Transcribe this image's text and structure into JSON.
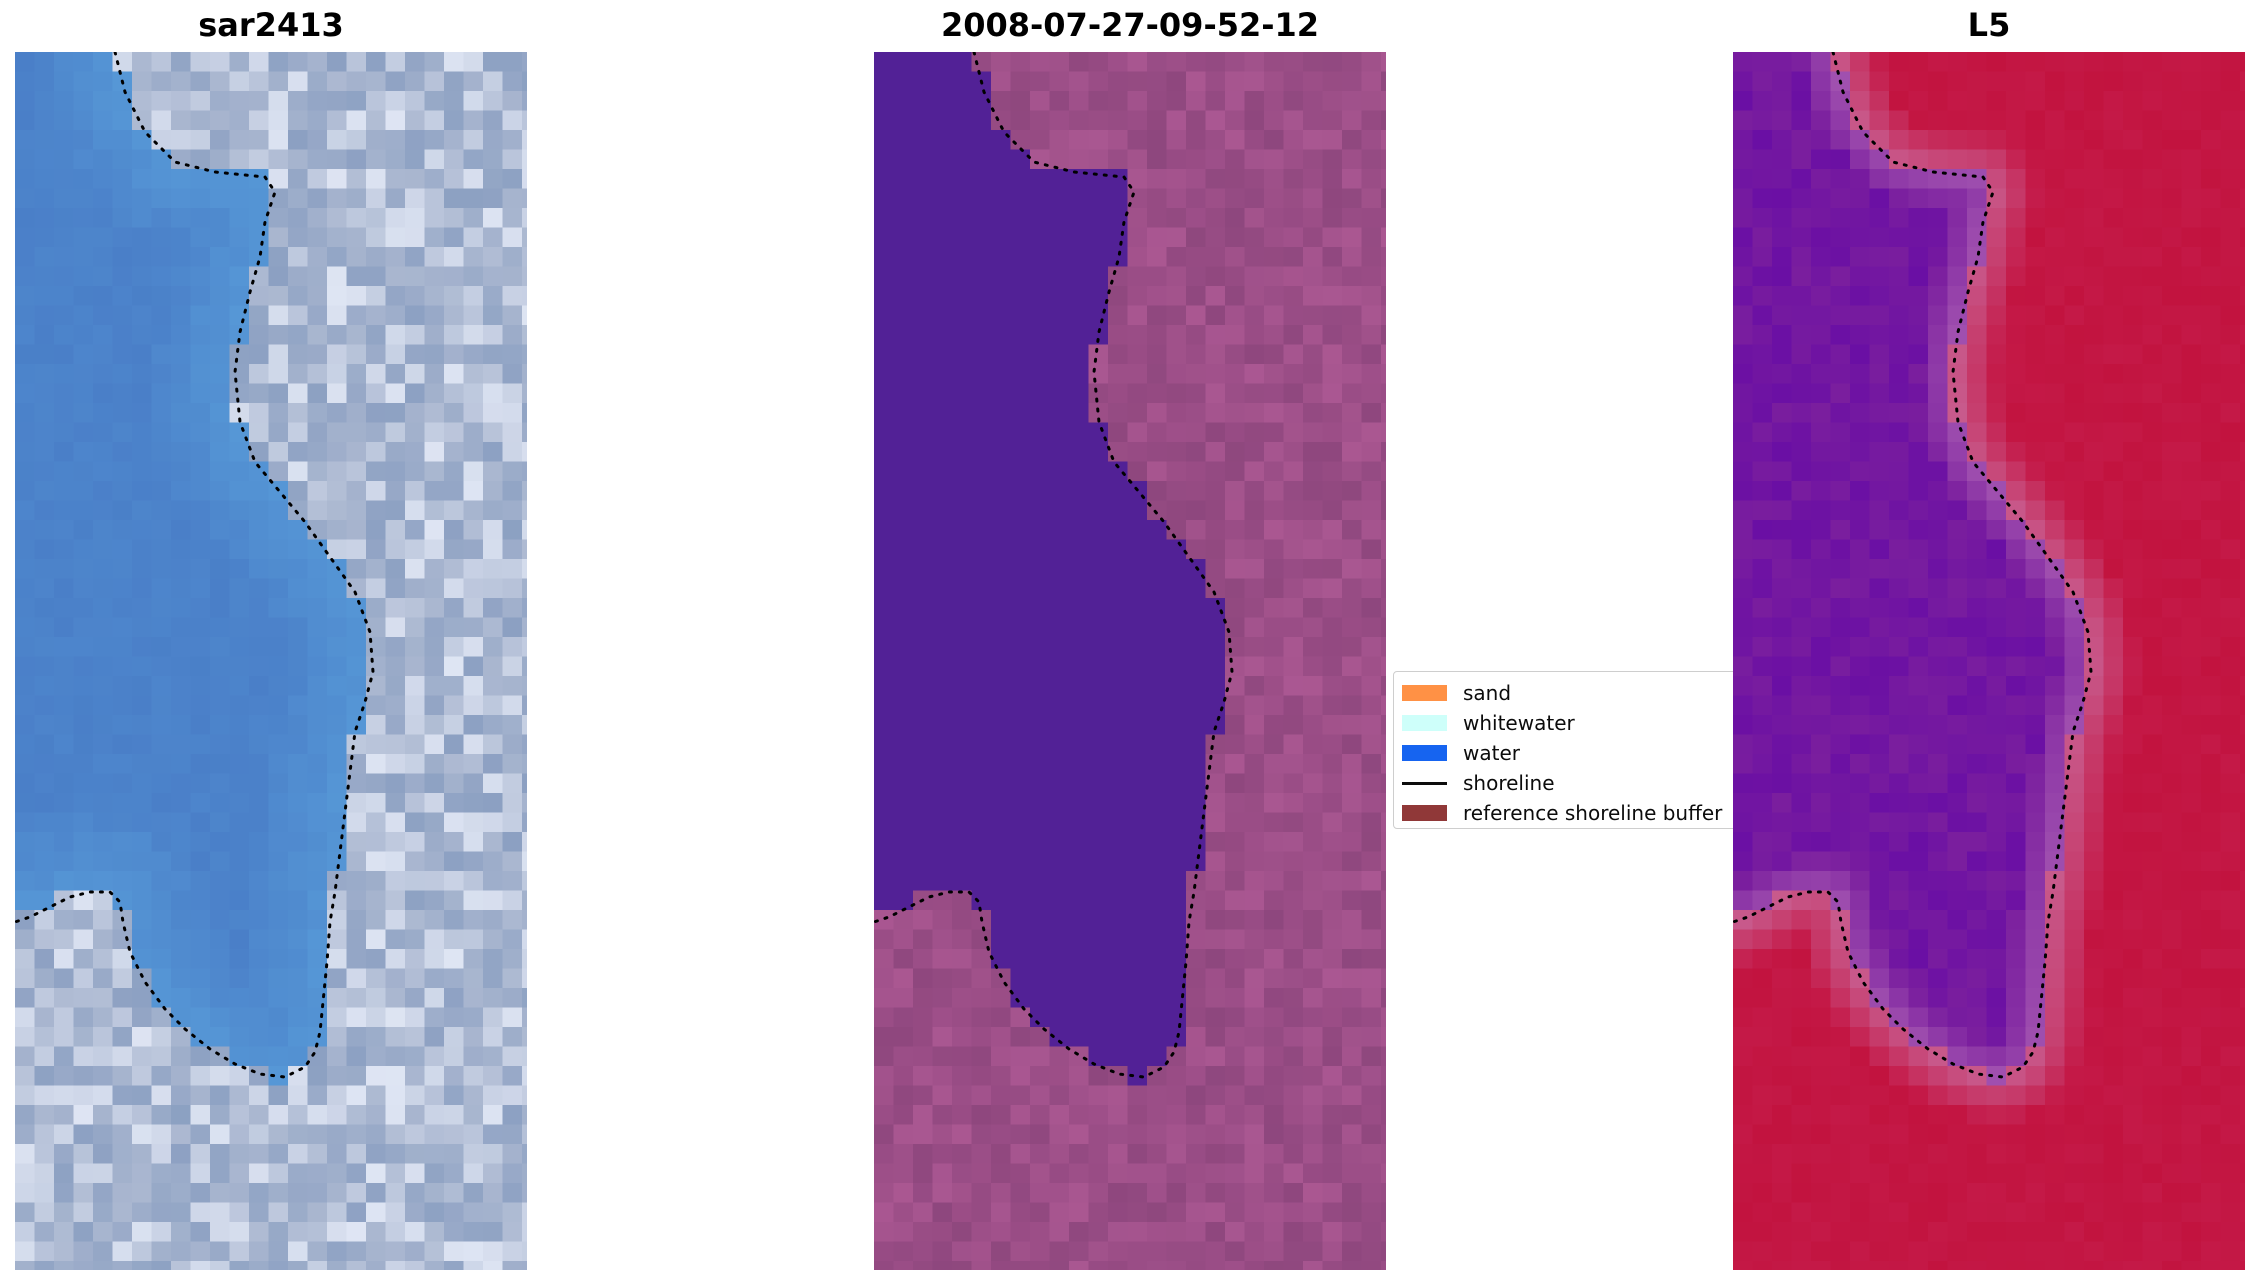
{
  "panels": [
    {
      "title": "sar2413",
      "kind": "rgb-image"
    },
    {
      "title": "2008-07-27-09-52-12",
      "kind": "classified-image"
    },
    {
      "title": "L5",
      "kind": "mndwi-image"
    }
  ],
  "legend": {
    "items": [
      {
        "label": "sand",
        "color": "#ff8c3c",
        "type": "patch"
      },
      {
        "label": "whitewater",
        "color": "#ccfffa",
        "type": "patch"
      },
      {
        "label": "water",
        "color": "#0a5cf0",
        "type": "patch"
      },
      {
        "label": "shoreline",
        "color": "#000000",
        "type": "line"
      },
      {
        "label": "reference shoreline buffer",
        "color": "#8b2e2e",
        "type": "patch"
      }
    ]
  },
  "colors": {
    "rgb_water": "#4a7fc8",
    "rgb_land": "#aab7d0",
    "class_water": "#522196",
    "class_land": "#9a4d86",
    "mndwi_water": "#7a1e9e",
    "mndwi_land": "#c41947",
    "shoreline": "#000000"
  }
}
